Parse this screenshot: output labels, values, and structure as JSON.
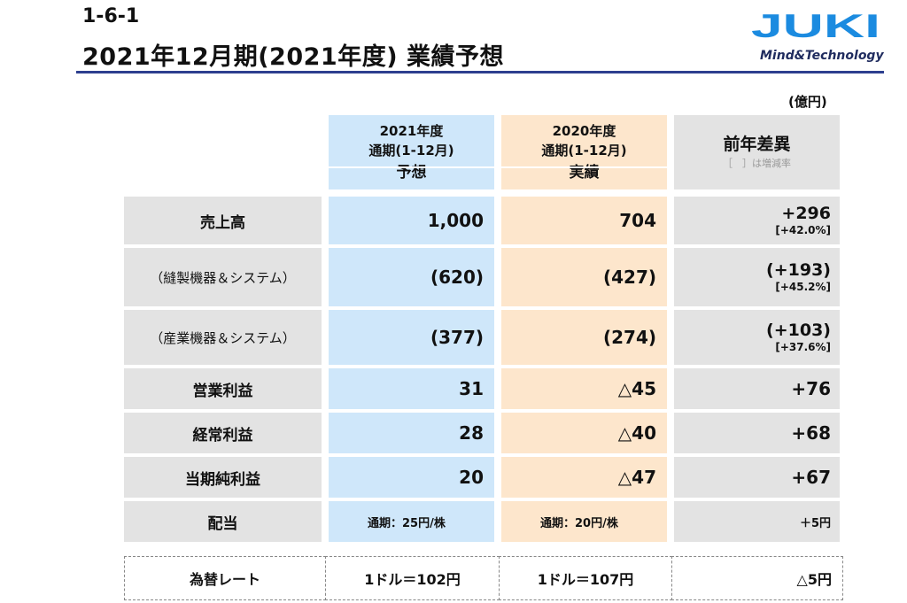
{
  "header": {
    "section_no": "1-6-1",
    "title": "2021年12月期(2021年度) 業績予想",
    "unit": "(億円)",
    "logo_text": "JUKI",
    "tagline": "Mind&Technology",
    "accent_color": "#2d3f8f",
    "logo_color": "#1b8be0"
  },
  "table": {
    "columns": [
      {
        "line1": "2021年度",
        "line2": "通期(1-12月)",
        "line3": "予想",
        "color": "#cfe7fa"
      },
      {
        "line1": "2020年度",
        "line2": "通期(1-12月)",
        "line3": "実績",
        "color": "#fde6cc"
      },
      {
        "line1": "前年差異",
        "line2": "［　］は増減率",
        "color": "#e3e3e3"
      }
    ],
    "rows": [
      {
        "label": "売上高",
        "forecast": "1,000",
        "actual": "704",
        "diff": "+296",
        "rate": "[+42.0%]"
      },
      {
        "label": "（縫製機器＆システム）",
        "forecast": "(620)",
        "actual": "(427)",
        "diff": "(+193)",
        "rate": "[+45.2%]"
      },
      {
        "label": "（産業機器＆システム）",
        "forecast": "(377)",
        "actual": "(274)",
        "diff": "(+103)",
        "rate": "[+37.6%]"
      },
      {
        "label": "営業利益",
        "forecast": "31",
        "actual": "△45",
        "diff": "+76"
      },
      {
        "label": "経常利益",
        "forecast": "28",
        "actual": "△40",
        "diff": "+68"
      },
      {
        "label": "当期純利益",
        "forecast": "20",
        "actual": "△47",
        "diff": "+67"
      },
      {
        "label": "配当",
        "forecast": "通期：25円/株",
        "actual": "通期：20円/株",
        "diff": "＋5円"
      }
    ]
  },
  "fx": {
    "label": "為替レート",
    "forecast": "1ドル＝102円",
    "actual": "1ドル＝107円",
    "diff": "△5円"
  }
}
